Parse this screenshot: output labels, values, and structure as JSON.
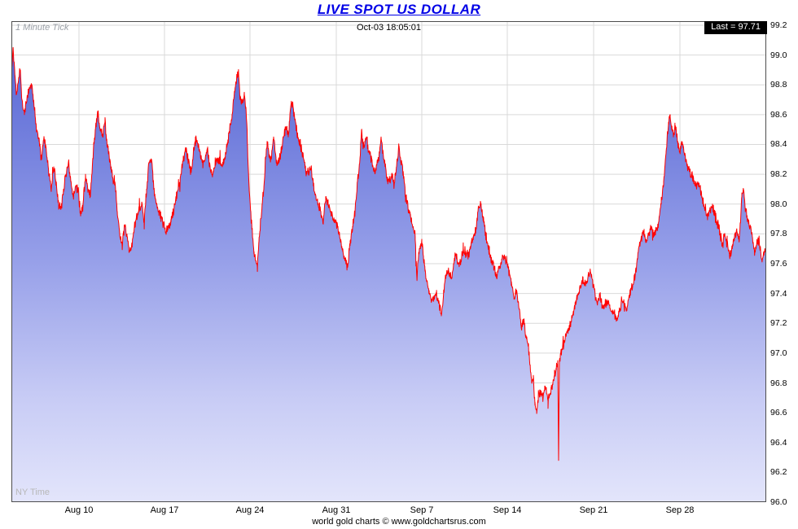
{
  "title": "LIVE SPOT US DOLLAR",
  "header": {
    "tick_label": "1 Minute Tick",
    "timestamp": "Oct-03 18:05:01",
    "last_label": "Last = 97.71"
  },
  "footer": {
    "timezone_label": "NY Time",
    "credit": "world gold charts © www.goldchartsrus.com"
  },
  "colors": {
    "title": "#0000e6",
    "line": "#ff0000",
    "grid": "#d9d9d9",
    "border": "#4d4d4d",
    "last_box_bg": "#000000",
    "last_box_text": "#ffffff",
    "fill_stops": [
      {
        "o": 0,
        "c": "#5060d2"
      },
      {
        "o": 0.5,
        "c": "#97a0e9"
      },
      {
        "o": 0.78,
        "c": "#c7cbf5"
      },
      {
        "o": 1,
        "c": "#e3e5fb"
      }
    ]
  },
  "chart_data": {
    "type": "area",
    "title": "LIVE SPOT US DOLLAR",
    "series_name": "US Dollar Index spot, 1 minute tick",
    "last_value": 97.71,
    "last_time": "Oct-03 18:05:01",
    "ylim": [
      96.0,
      99.2
    ],
    "y_step": 0.2,
    "y_tick_labels": [
      "96.0",
      "96.2",
      "96.4",
      "96.6",
      "96.8",
      "97.0",
      "97.2",
      "97.4",
      "97.6",
      "97.8",
      "98.0",
      "98.2",
      "98.4",
      "98.6",
      "98.8",
      "99.0",
      "99.2"
    ],
    "x_tick_labels": [
      "Aug 10",
      "Aug 17",
      "Aug 24",
      "Aug 31",
      "Sep 7",
      "Sep 14",
      "Sep 21",
      "Sep 28"
    ],
    "x_tick_pos": [
      0.0895,
      0.2028,
      0.3161,
      0.4304,
      0.5437,
      0.657,
      0.7713,
      0.8856
    ],
    "points": [
      [
        0.0,
        98.85
      ],
      [
        0.0022,
        99.05
      ],
      [
        0.0043,
        98.9
      ],
      [
        0.0065,
        98.75
      ],
      [
        0.0097,
        98.85
      ],
      [
        0.0119,
        98.9
      ],
      [
        0.014,
        98.7
      ],
      [
        0.0173,
        98.6
      ],
      [
        0.0205,
        98.7
      ],
      [
        0.0237,
        98.78
      ],
      [
        0.027,
        98.8
      ],
      [
        0.0302,
        98.65
      ],
      [
        0.0334,
        98.5
      ],
      [
        0.0367,
        98.42
      ],
      [
        0.0399,
        98.3
      ],
      [
        0.0431,
        98.45
      ],
      [
        0.0464,
        98.35
      ],
      [
        0.0496,
        98.2
      ],
      [
        0.0529,
        98.1
      ],
      [
        0.0561,
        98.25
      ],
      [
        0.0593,
        98.15
      ],
      [
        0.0626,
        98.0
      ],
      [
        0.0658,
        97.98
      ],
      [
        0.069,
        98.1
      ],
      [
        0.0723,
        98.2
      ],
      [
        0.0755,
        98.28
      ],
      [
        0.0787,
        98.15
      ],
      [
        0.082,
        98.05
      ],
      [
        0.0852,
        98.12
      ],
      [
        0.0885,
        98.1
      ],
      [
        0.0917,
        97.92
      ],
      [
        0.0949,
        98.0
      ],
      [
        0.0982,
        98.2
      ],
      [
        0.1014,
        98.1
      ],
      [
        0.1046,
        98.05
      ],
      [
        0.1079,
        98.3
      ],
      [
        0.1111,
        98.5
      ],
      [
        0.1143,
        98.62
      ],
      [
        0.1176,
        98.5
      ],
      [
        0.1208,
        98.45
      ],
      [
        0.124,
        98.55
      ],
      [
        0.1273,
        98.4
      ],
      [
        0.1305,
        98.3
      ],
      [
        0.1338,
        98.18
      ],
      [
        0.137,
        98.15
      ],
      [
        0.1402,
        97.95
      ],
      [
        0.1435,
        97.8
      ],
      [
        0.1467,
        97.72
      ],
      [
        0.1499,
        97.85
      ],
      [
        0.1532,
        97.78
      ],
      [
        0.1564,
        97.68
      ],
      [
        0.1596,
        97.72
      ],
      [
        0.1629,
        97.85
      ],
      [
        0.1661,
        97.9
      ],
      [
        0.1693,
        97.95
      ],
      [
        0.1726,
        98.0
      ],
      [
        0.1758,
        97.9
      ],
      [
        0.1791,
        98.1
      ],
      [
        0.1823,
        98.28
      ],
      [
        0.1855,
        98.3
      ],
      [
        0.1888,
        98.1
      ],
      [
        0.192,
        98.0
      ],
      [
        0.1952,
        97.95
      ],
      [
        0.1985,
        97.9
      ],
      [
        0.2017,
        97.88
      ],
      [
        0.2049,
        97.8
      ],
      [
        0.2082,
        97.85
      ],
      [
        0.2114,
        97.88
      ],
      [
        0.2147,
        97.95
      ],
      [
        0.2179,
        98.05
      ],
      [
        0.2211,
        98.12
      ],
      [
        0.2244,
        98.2
      ],
      [
        0.2276,
        98.3
      ],
      [
        0.2308,
        98.38
      ],
      [
        0.2341,
        98.3
      ],
      [
        0.2373,
        98.22
      ],
      [
        0.2405,
        98.3
      ],
      [
        0.2438,
        98.45
      ],
      [
        0.247,
        98.4
      ],
      [
        0.2503,
        98.35
      ],
      [
        0.2535,
        98.28
      ],
      [
        0.2567,
        98.3
      ],
      [
        0.26,
        98.35
      ],
      [
        0.2632,
        98.25
      ],
      [
        0.2664,
        98.2
      ],
      [
        0.2697,
        98.25
      ],
      [
        0.2729,
        98.3
      ],
      [
        0.2761,
        98.28
      ],
      [
        0.2794,
        98.25
      ],
      [
        0.2826,
        98.3
      ],
      [
        0.2859,
        98.4
      ],
      [
        0.2891,
        98.5
      ],
      [
        0.2923,
        98.6
      ],
      [
        0.2956,
        98.75
      ],
      [
        0.2988,
        98.85
      ],
      [
        0.301,
        98.88
      ],
      [
        0.3031,
        98.7
      ],
      [
        0.3064,
        98.68
      ],
      [
        0.3085,
        98.75
      ],
      [
        0.3107,
        98.65
      ],
      [
        0.3128,
        98.4
      ],
      [
        0.315,
        98.1
      ],
      [
        0.3171,
        97.95
      ],
      [
        0.3193,
        97.8
      ],
      [
        0.3215,
        97.68
      ],
      [
        0.3236,
        97.62
      ],
      [
        0.3258,
        97.58
      ],
      [
        0.3279,
        97.75
      ],
      [
        0.3301,
        97.9
      ],
      [
        0.3322,
        98.0
      ],
      [
        0.3344,
        98.1
      ],
      [
        0.3366,
        98.3
      ],
      [
        0.3387,
        98.42
      ],
      [
        0.3409,
        98.35
      ],
      [
        0.3441,
        98.3
      ],
      [
        0.3474,
        98.45
      ],
      [
        0.3506,
        98.3
      ],
      [
        0.3538,
        98.28
      ],
      [
        0.3571,
        98.35
      ],
      [
        0.3603,
        98.45
      ],
      [
        0.3635,
        98.52
      ],
      [
        0.3668,
        98.45
      ],
      [
        0.37,
        98.65
      ],
      [
        0.3722,
        98.68
      ],
      [
        0.3743,
        98.6
      ],
      [
        0.3776,
        98.5
      ],
      [
        0.3808,
        98.42
      ],
      [
        0.384,
        98.38
      ],
      [
        0.3873,
        98.3
      ],
      [
        0.3905,
        98.2
      ],
      [
        0.3937,
        98.22
      ],
      [
        0.397,
        98.25
      ],
      [
        0.4002,
        98.12
      ],
      [
        0.4034,
        98.05
      ],
      [
        0.4067,
        98.0
      ],
      [
        0.4099,
        97.95
      ],
      [
        0.4132,
        97.88
      ],
      [
        0.4164,
        98.05
      ],
      [
        0.4196,
        98.0
      ],
      [
        0.4229,
        97.95
      ],
      [
        0.4261,
        97.9
      ],
      [
        0.4293,
        97.88
      ],
      [
        0.4326,
        97.85
      ],
      [
        0.4358,
        97.75
      ],
      [
        0.439,
        97.68
      ],
      [
        0.4423,
        97.62
      ],
      [
        0.4455,
        97.58
      ],
      [
        0.4488,
        97.75
      ],
      [
        0.452,
        97.85
      ],
      [
        0.4552,
        97.95
      ],
      [
        0.4585,
        98.15
      ],
      [
        0.4617,
        98.3
      ],
      [
        0.4639,
        98.5
      ],
      [
        0.466,
        98.38
      ],
      [
        0.4682,
        98.42
      ],
      [
        0.4703,
        98.45
      ],
      [
        0.4736,
        98.35
      ],
      [
        0.4768,
        98.3
      ],
      [
        0.48,
        98.22
      ],
      [
        0.4833,
        98.25
      ],
      [
        0.4865,
        98.3
      ],
      [
        0.4897,
        98.45
      ],
      [
        0.4919,
        98.35
      ],
      [
        0.4941,
        98.28
      ],
      [
        0.4973,
        98.18
      ],
      [
        0.5005,
        98.15
      ],
      [
        0.5038,
        98.2
      ],
      [
        0.507,
        98.12
      ],
      [
        0.5102,
        98.25
      ],
      [
        0.5135,
        98.38
      ],
      [
        0.5156,
        98.3
      ],
      [
        0.5189,
        98.22
      ],
      [
        0.5221,
        98.05
      ],
      [
        0.5253,
        97.98
      ],
      [
        0.5286,
        97.92
      ],
      [
        0.5318,
        97.85
      ],
      [
        0.535,
        97.78
      ],
      [
        0.5372,
        97.5
      ],
      [
        0.5394,
        97.65
      ],
      [
        0.5415,
        97.72
      ],
      [
        0.5437,
        97.75
      ],
      [
        0.5458,
        97.65
      ],
      [
        0.548,
        97.55
      ],
      [
        0.5502,
        97.48
      ],
      [
        0.5534,
        97.42
      ],
      [
        0.5566,
        97.35
      ],
      [
        0.5599,
        97.38
      ],
      [
        0.5631,
        97.4
      ],
      [
        0.5663,
        97.35
      ],
      [
        0.5696,
        97.25
      ],
      [
        0.5728,
        97.42
      ],
      [
        0.5761,
        97.52
      ],
      [
        0.5793,
        97.55
      ],
      [
        0.5825,
        97.5
      ],
      [
        0.5858,
        97.6
      ],
      [
        0.589,
        97.65
      ],
      [
        0.5922,
        97.6
      ],
      [
        0.5955,
        97.62
      ],
      [
        0.5987,
        97.7
      ],
      [
        0.6019,
        97.68
      ],
      [
        0.6052,
        97.65
      ],
      [
        0.6084,
        97.72
      ],
      [
        0.6116,
        97.78
      ],
      [
        0.6149,
        97.82
      ],
      [
        0.6181,
        97.95
      ],
      [
        0.6213,
        98.0
      ],
      [
        0.6235,
        97.95
      ],
      [
        0.6267,
        97.85
      ],
      [
        0.63,
        97.75
      ],
      [
        0.6332,
        97.68
      ],
      [
        0.6364,
        97.62
      ],
      [
        0.6397,
        97.58
      ],
      [
        0.6429,
        97.5
      ],
      [
        0.6461,
        97.58
      ],
      [
        0.6494,
        97.62
      ],
      [
        0.6526,
        97.65
      ],
      [
        0.6558,
        97.62
      ],
      [
        0.6591,
        97.55
      ],
      [
        0.6623,
        97.48
      ],
      [
        0.6656,
        97.38
      ],
      [
        0.6688,
        97.42
      ],
      [
        0.672,
        97.32
      ],
      [
        0.6753,
        97.18
      ],
      [
        0.6785,
        97.22
      ],
      [
        0.6817,
        97.12
      ],
      [
        0.685,
        97.05
      ],
      [
        0.6871,
        96.92
      ],
      [
        0.6893,
        96.8
      ],
      [
        0.6915,
        96.85
      ],
      [
        0.6936,
        96.65
      ],
      [
        0.6958,
        96.62
      ],
      [
        0.6979,
        96.68
      ],
      [
        0.7001,
        96.75
      ],
      [
        0.7022,
        96.72
      ],
      [
        0.7044,
        96.7
      ],
      [
        0.7066,
        96.78
      ],
      [
        0.7087,
        96.75
      ],
      [
        0.7109,
        96.68
      ],
      [
        0.713,
        96.72
      ],
      [
        0.7152,
        96.76
      ],
      [
        0.7174,
        96.8
      ],
      [
        0.7195,
        96.85
      ],
      [
        0.7217,
        96.9
      ],
      [
        0.7238,
        96.95
      ],
      [
        0.7249,
        96.28
      ],
      [
        0.726,
        96.95
      ],
      [
        0.7282,
        97.0
      ],
      [
        0.7303,
        97.05
      ],
      [
        0.7325,
        97.08
      ],
      [
        0.7346,
        97.12
      ],
      [
        0.7379,
        97.15
      ],
      [
        0.7411,
        97.2
      ],
      [
        0.7443,
        97.28
      ],
      [
        0.7476,
        97.35
      ],
      [
        0.7508,
        97.4
      ],
      [
        0.754,
        97.45
      ],
      [
        0.7573,
        97.5
      ],
      [
        0.7605,
        97.45
      ],
      [
        0.7637,
        97.5
      ],
      [
        0.767,
        97.55
      ],
      [
        0.7691,
        97.5
      ],
      [
        0.7713,
        97.45
      ],
      [
        0.7735,
        97.38
      ],
      [
        0.7767,
        97.35
      ],
      [
        0.7799,
        97.4
      ],
      [
        0.7832,
        97.3
      ],
      [
        0.7864,
        97.32
      ],
      [
        0.7896,
        97.35
      ],
      [
        0.7929,
        97.3
      ],
      [
        0.7961,
        97.28
      ],
      [
        0.7993,
        97.25
      ],
      [
        0.8026,
        97.22
      ],
      [
        0.8058,
        97.3
      ],
      [
        0.8091,
        97.35
      ],
      [
        0.8123,
        97.32
      ],
      [
        0.8155,
        97.3
      ],
      [
        0.8188,
        97.38
      ],
      [
        0.822,
        97.45
      ],
      [
        0.8252,
        97.5
      ],
      [
        0.8285,
        97.6
      ],
      [
        0.8317,
        97.72
      ],
      [
        0.8349,
        97.78
      ],
      [
        0.8382,
        97.8
      ],
      [
        0.8414,
        97.75
      ],
      [
        0.8446,
        97.8
      ],
      [
        0.8479,
        97.85
      ],
      [
        0.8511,
        97.8
      ],
      [
        0.8543,
        97.82
      ],
      [
        0.8576,
        97.88
      ],
      [
        0.8608,
        98.0
      ],
      [
        0.8641,
        98.15
      ],
      [
        0.8673,
        98.35
      ],
      [
        0.8705,
        98.55
      ],
      [
        0.8727,
        98.6
      ],
      [
        0.8748,
        98.5
      ],
      [
        0.877,
        98.45
      ],
      [
        0.8791,
        98.52
      ],
      [
        0.8813,
        98.45
      ],
      [
        0.8834,
        98.4
      ],
      [
        0.8856,
        98.35
      ],
      [
        0.8878,
        98.42
      ],
      [
        0.8899,
        98.38
      ],
      [
        0.8932,
        98.3
      ],
      [
        0.8964,
        98.25
      ],
      [
        0.8996,
        98.2
      ],
      [
        0.9029,
        98.18
      ],
      [
        0.9061,
        98.12
      ],
      [
        0.9093,
        98.15
      ],
      [
        0.9126,
        98.1
      ],
      [
        0.9158,
        98.02
      ],
      [
        0.919,
        97.98
      ],
      [
        0.9223,
        97.92
      ],
      [
        0.9255,
        97.95
      ],
      [
        0.9288,
        98.0
      ],
      [
        0.932,
        97.92
      ],
      [
        0.9352,
        97.88
      ],
      [
        0.9385,
        97.82
      ],
      [
        0.9417,
        97.72
      ],
      [
        0.9449,
        97.8
      ],
      [
        0.9482,
        97.76
      ],
      [
        0.9514,
        97.65
      ],
      [
        0.9546,
        97.7
      ],
      [
        0.9579,
        97.78
      ],
      [
        0.9611,
        97.82
      ],
      [
        0.9643,
        97.76
      ],
      [
        0.9676,
        98.05
      ],
      [
        0.9698,
        98.1
      ],
      [
        0.9719,
        97.98
      ],
      [
        0.9752,
        97.9
      ],
      [
        0.9784,
        97.85
      ],
      [
        0.9816,
        97.78
      ],
      [
        0.9849,
        97.68
      ],
      [
        0.9881,
        97.75
      ],
      [
        0.9913,
        97.72
      ],
      [
        0.9946,
        97.62
      ],
      [
        0.9967,
        97.68
      ],
      [
        1.0,
        97.71
      ]
    ]
  }
}
